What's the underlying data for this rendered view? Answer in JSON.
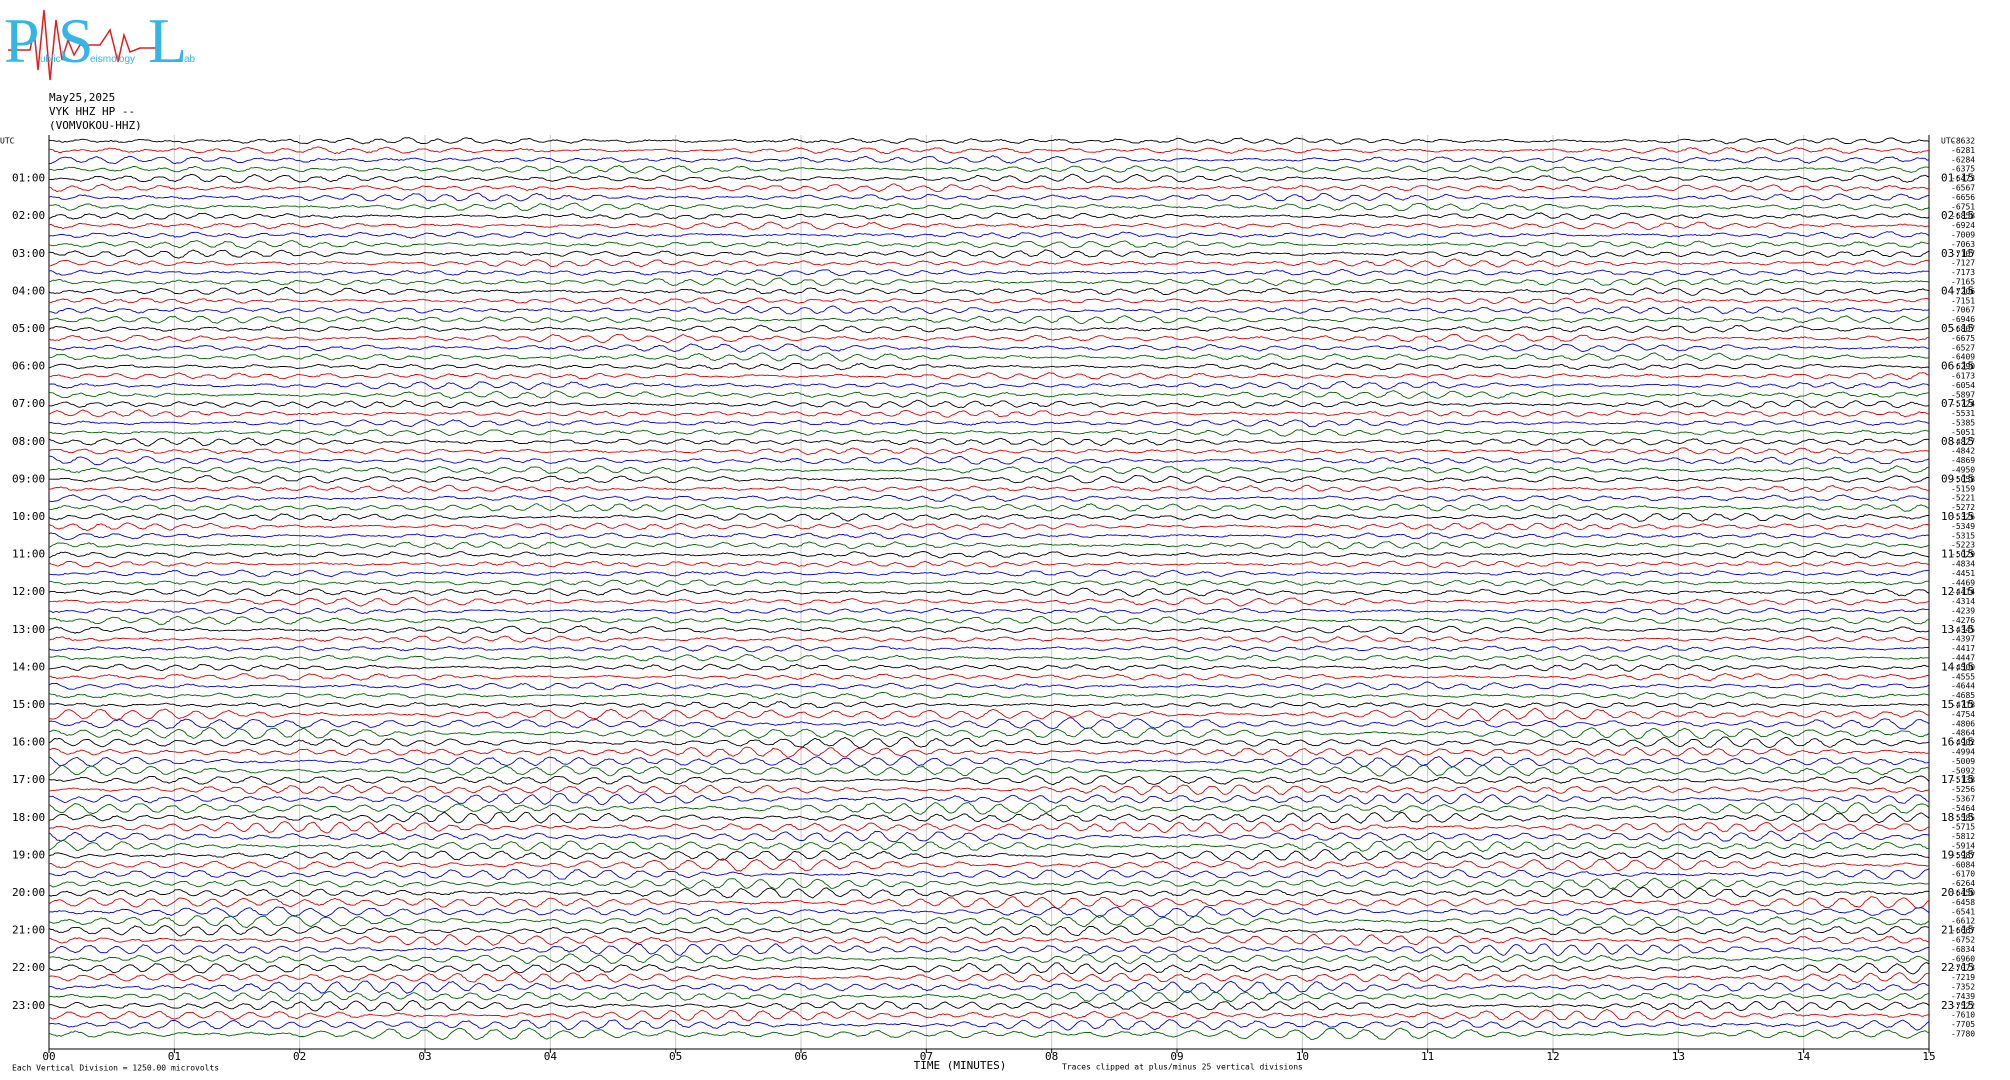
{
  "logo": {
    "p": "P",
    "p_rest": "ublic",
    "s": "S",
    "s_rest": "eismology",
    "l": "L",
    "l_rest": "ab"
  },
  "header": {
    "date": "May25,2025",
    "station": "VYK HHZ HP --",
    "channel": "(VOMVOKOU-HHZ)"
  },
  "left_labels": [
    "UTC",
    "01:00",
    "02:00",
    "03:00",
    "04:00",
    "05:00",
    "06:00",
    "07:00",
    "08:00",
    "09:00",
    "10:00",
    "11:00",
    "12:00",
    "13:00",
    "14:00",
    "15:00",
    "16:00",
    "17:00",
    "18:00",
    "19:00",
    "20:00",
    "21:00",
    "22:00",
    "23:00"
  ],
  "right_labels": [
    "UTC",
    "01:15",
    "02:15",
    "03:15",
    "04:15",
    "05:15",
    "06:15",
    "07:15",
    "08:15",
    "09:15",
    "10:15",
    "11:15",
    "12:15",
    "13:15",
    "14:15",
    "15:15",
    "16:15",
    "17:15",
    "18:15",
    "19:15",
    "20:15",
    "21:15",
    "22:15",
    "23:15"
  ],
  "trace_offsets": [
    -8632,
    -6281,
    -6284,
    -6375,
    -6473,
    -6567,
    -6656,
    -6751,
    -6858,
    -6924,
    -7009,
    -7063,
    -7107,
    -7127,
    -7173,
    -7165,
    -7206,
    -7151,
    -7067,
    -6946,
    -6807,
    -6675,
    -6527,
    -6409,
    -6290,
    -6173,
    -6054,
    -5897,
    -5724,
    -5531,
    -5385,
    -5051,
    -4827,
    -4842,
    -4869,
    -4950,
    -5058,
    -5159,
    -5221,
    -5272,
    -5326,
    -5349,
    -5315,
    -5223,
    -5029,
    -4834,
    -4451,
    -4469,
    -4414,
    -4314,
    -4239,
    -4276,
    -4345,
    -4397,
    -4417,
    -4447,
    -4500,
    -4555,
    -4644,
    -4685,
    -4718,
    -4754,
    -4806,
    -4864,
    -4902,
    -4994,
    -5009,
    -5092,
    -5138,
    -5256,
    -5367,
    -5464,
    -5585,
    -5715,
    -5812,
    -5914,
    -5987,
    -6084,
    -6170,
    -6264,
    -6450,
    -6458,
    -6541,
    -6612,
    -6667,
    -6752,
    -6834,
    -6960,
    -7073,
    -7219,
    -7352,
    -7439,
    -7522,
    -7610,
    -7705,
    -7780
  ],
  "x_axis": {
    "ticks": [
      "00",
      "01",
      "02",
      "03",
      "04",
      "05",
      "06",
      "07",
      "08",
      "09",
      "10",
      "11",
      "12",
      "13",
      "14",
      "15"
    ],
    "title": "TIME (MINUTES)"
  },
  "footer": {
    "division": "Each Vertical Division = 1250.00 microvolts",
    "clipped": "Traces clipped at plus/minus 25 vertical divisions"
  }
}
